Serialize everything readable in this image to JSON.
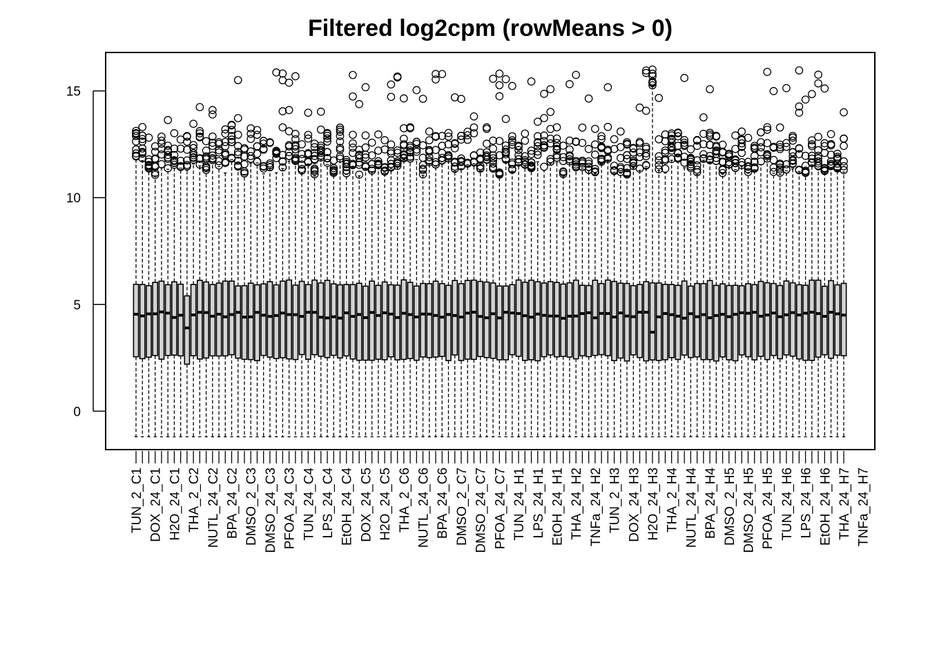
{
  "chart_data": {
    "type": "box",
    "title": "Filtered log2cpm (rowMeans > 0)",
    "xlabel": "",
    "ylabel": "",
    "ylim": [
      -1.8,
      16.8
    ],
    "yticks": [
      0,
      5,
      10,
      15
    ],
    "n_boxes": 112,
    "x_tick_labels": [
      "TUN_2_C1",
      "DOX_24_C1",
      "H2O_24_C1",
      "THA_2_C2",
      "NUTL_24_C2",
      "BPA_24_C2",
      "DMSO_2_C3",
      "DMSO_24_C3",
      "PFOA_24_C3",
      "TUN_24_C4",
      "LPS_24_C4",
      "EtOH_24_C4",
      "DOX_24_C5",
      "H2O_24_C5",
      "THA_2_C6",
      "NUTL_24_C6",
      "BPA_24_C6",
      "DMSO_2_C7",
      "DMSO_24_C7",
      "PFOA_24_C7",
      "TUN_24_H1",
      "LPS_24_H1",
      "EtOH_24_H1",
      "THA_24_H2",
      "TNFa_24_H2",
      "TUN_2_H3",
      "DOX_24_H3",
      "H2O_24_H3",
      "THA_2_H4",
      "NUTL_24_H4",
      "BPA_24_H4",
      "DMSO_2_H5",
      "DMSO_24_H5",
      "PFOA_24_H5",
      "TUN_24_H6",
      "LPS_24_H6",
      "EtOH_24_H6",
      "THA_24_H7",
      "TNFa_24_H7"
    ],
    "summary": {
      "whisker_low_typical": -1.2,
      "q1_typical": 2.5,
      "median_typical": 4.5,
      "q3_typical": 6.0,
      "whisker_high_typical": 11.5,
      "outlier_max": 16.0
    },
    "anomalies": [
      {
        "box_index": 8,
        "q1": 2.2,
        "median": 3.9,
        "q3": 5.4
      },
      {
        "box_index": 81,
        "whisker_low": -1.2,
        "median": 3.7,
        "whisker_high": 15.2
      }
    ],
    "grid": false,
    "legend": "none"
  }
}
